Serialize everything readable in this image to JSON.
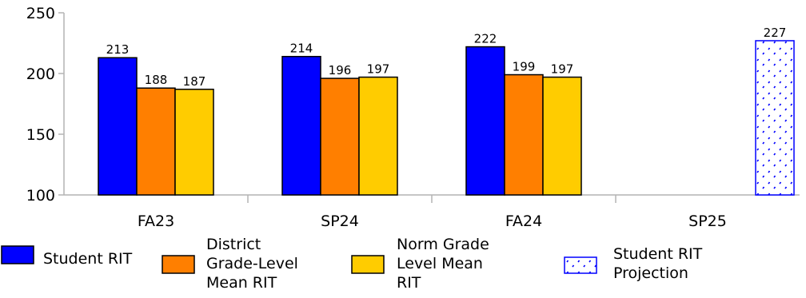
{
  "chart_data": {
    "type": "bar",
    "categories": [
      "FA23",
      "SP24",
      "FA24",
      "SP25"
    ],
    "ylim": [
      100,
      250
    ],
    "yticks": [
      100,
      150,
      200,
      250
    ],
    "grid": false,
    "legend_position": "bottom",
    "series": [
      {
        "name": "Student RIT",
        "color": "#0000ff",
        "pattern": "solid",
        "values": [
          213,
          214,
          222,
          null
        ]
      },
      {
        "name": "District Grade-Level Mean RIT",
        "color": "#ff7f00",
        "pattern": "solid",
        "values": [
          188,
          196,
          199,
          null
        ]
      },
      {
        "name": "Norm Grade Level Mean RIT",
        "color": "#ffcc00",
        "pattern": "solid",
        "values": [
          187,
          197,
          197,
          null
        ]
      },
      {
        "name": "Student RIT Projection",
        "color": "#0000ff",
        "pattern": "hatched",
        "values": [
          null,
          null,
          null,
          227
        ]
      }
    ]
  },
  "legend": {
    "items": [
      {
        "lines": [
          "Student RIT"
        ]
      },
      {
        "lines": [
          "District",
          "Grade-Level",
          "Mean RIT"
        ]
      },
      {
        "lines": [
          "Norm Grade",
          "Level Mean",
          "RIT"
        ]
      },
      {
        "lines": [
          "Student RIT",
          "Projection"
        ]
      }
    ]
  }
}
